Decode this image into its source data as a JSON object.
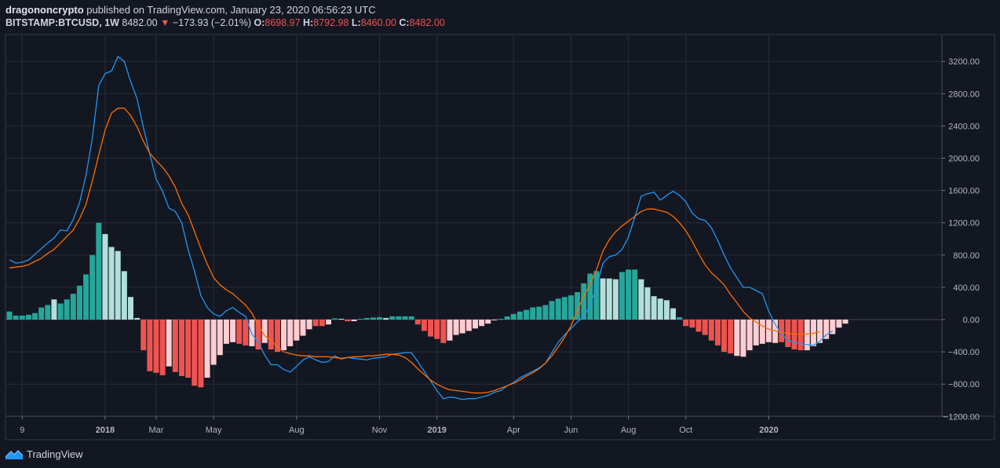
{
  "header": {
    "user": "dragononcrypto",
    "published": "published on TradingView.com, January 23, 2020 06:56:23 UTC",
    "symbol": "BITSTAMP:BTCUSD, 1W",
    "price": "8482.00",
    "change": "−173.93 (−2.01%)",
    "open_label": "O:",
    "open": "8698.97",
    "high_label": "H:",
    "high": "8792.98",
    "low_label": "L:",
    "low": "8460.00",
    "close_label": "C:",
    "close": "8482.00"
  },
  "footer": {
    "brand": "TradingView"
  },
  "colors": {
    "background": "#131722",
    "grid": "#2a2e39",
    "macd": "#2196f3",
    "signal": "#ff6d00",
    "hist_pos_strong": "#26a69a",
    "hist_pos_weak": "#b2dfdb",
    "hist_neg_strong": "#ef5350",
    "hist_neg_weak": "#ffcdd2"
  },
  "chart_data": {
    "type": "bar",
    "title": "",
    "ylim": [
      -1250,
      3400
    ],
    "y_ticks": [
      3200,
      2800,
      2400,
      2000,
      1600,
      1200,
      800,
      400,
      0,
      -400,
      -800,
      -1200
    ],
    "y_tick_labels": [
      "3200.00",
      "2800.00",
      "2400.00",
      "2000.00",
      "1600.00",
      "1200.00",
      "800.00",
      "400.00",
      "0.00",
      "−400.00",
      "−800.00",
      "−1200.00"
    ],
    "x_ticks": [
      {
        "label": "9",
        "week": 2,
        "bold": false
      },
      {
        "label": "2018",
        "week": 15,
        "bold": true
      },
      {
        "label": "Mar",
        "week": 23,
        "bold": false
      },
      {
        "label": "May",
        "week": 32,
        "bold": false
      },
      {
        "label": "Aug",
        "week": 45,
        "bold": false
      },
      {
        "label": "Nov",
        "week": 58,
        "bold": false
      },
      {
        "label": "2019",
        "week": 67,
        "bold": true
      },
      {
        "label": "Apr",
        "week": 79,
        "bold": false
      },
      {
        "label": "Jun",
        "week": 88,
        "bold": false
      },
      {
        "label": "Aug",
        "week": 97,
        "bold": false
      },
      {
        "label": "Oct",
        "week": 106,
        "bold": false
      },
      {
        "label": "2020",
        "week": 119,
        "bold": true
      }
    ],
    "x_range": [
      -0.5,
      129
    ],
    "histogram": [
      100,
      50,
      50,
      60,
      80,
      150,
      180,
      250,
      200,
      250,
      320,
      420,
      560,
      800,
      1200,
      1060,
      900,
      850,
      600,
      280,
      20,
      -380,
      -640,
      -660,
      -690,
      -580,
      -650,
      -700,
      -720,
      -820,
      -840,
      -720,
      -560,
      -440,
      -300,
      -280,
      -300,
      -320,
      -330,
      -370,
      -290,
      -370,
      -400,
      -380,
      -330,
      -260,
      -200,
      -120,
      -80,
      -80,
      -60,
      15,
      10,
      -20,
      -20,
      10,
      20,
      25,
      30,
      20,
      40,
      40,
      40,
      40,
      -60,
      -140,
      -210,
      -240,
      -290,
      -260,
      -190,
      -170,
      -140,
      -110,
      -80,
      -50,
      -10,
      10,
      40,
      70,
      100,
      120,
      150,
      160,
      180,
      230,
      260,
      280,
      300,
      340,
      450,
      570,
      600,
      510,
      510,
      500,
      590,
      620,
      620,
      500,
      400,
      290,
      260,
      240,
      140,
      30,
      -80,
      -100,
      -150,
      -190,
      -260,
      -320,
      -400,
      -420,
      -450,
      -460,
      -380,
      -320,
      -300,
      -280,
      -290,
      -280,
      -340,
      -370,
      -380,
      -380,
      -330,
      -290,
      -240,
      -180,
      -100,
      -50
    ],
    "hist_colors": [
      "s",
      "s",
      "s",
      "s",
      "s",
      "s",
      "s",
      "w",
      "s",
      "s",
      "s",
      "s",
      "s",
      "s",
      "s",
      "w",
      "w",
      "w",
      "w",
      "w",
      "w",
      "s",
      "s",
      "s",
      "s",
      "w",
      "s",
      "s",
      "s",
      "s",
      "s",
      "w",
      "w",
      "w",
      "w",
      "w",
      "s",
      "s",
      "w",
      "s",
      "w",
      "s",
      "s",
      "w",
      "w",
      "w",
      "w",
      "w",
      "s",
      "s",
      "w",
      "s",
      "w",
      "s",
      "w",
      "s",
      "s",
      "s",
      "s",
      "w",
      "s",
      "s",
      "s",
      "s",
      "s",
      "s",
      "s",
      "s",
      "s",
      "w",
      "w",
      "w",
      "w",
      "w",
      "w",
      "w",
      "w",
      "s",
      "s",
      "s",
      "s",
      "s",
      "s",
      "s",
      "s",
      "s",
      "s",
      "s",
      "s",
      "s",
      "s",
      "s",
      "s",
      "w",
      "w",
      "w",
      "s",
      "s",
      "s",
      "w",
      "w",
      "w",
      "w",
      "w",
      "w",
      "s",
      "s",
      "s",
      "s",
      "s",
      "s",
      "s",
      "s",
      "s",
      "w",
      "w",
      "w",
      "w",
      "w",
      "w",
      "w",
      "s",
      "s",
      "s",
      "s",
      "w",
      "w",
      "w",
      "w",
      "w"
    ],
    "series": [
      {
        "key": "macd",
        "values": [
          740,
          700,
          710,
          740,
          810,
          880,
          950,
          1010,
          1110,
          1100,
          1240,
          1450,
          1790,
          2250,
          2900,
          3050,
          3080,
          3260,
          3200,
          2950,
          2740,
          2380,
          2050,
          1740,
          1590,
          1380,
          1340,
          1200,
          870,
          600,
          300,
          150,
          70,
          40,
          110,
          150,
          90,
          40,
          -180,
          -280,
          -440,
          -560,
          -560,
          -620,
          -650,
          -580,
          -500,
          -460,
          -500,
          -530,
          -520,
          -450,
          -490,
          -470,
          -480,
          -490,
          -500,
          -480,
          -470,
          -460,
          -430,
          -420,
          -410,
          -410,
          -520,
          -640,
          -760,
          -880,
          -980,
          -960,
          -970,
          -990,
          -980,
          -980,
          -960,
          -940,
          -900,
          -880,
          -820,
          -780,
          -720,
          -680,
          -640,
          -600,
          -540,
          -410,
          -280,
          -190,
          -110,
          -30,
          40,
          180,
          400,
          700,
          780,
          800,
          870,
          1020,
          1270,
          1530,
          1560,
          1580,
          1480,
          1540,
          1590,
          1540,
          1460,
          1320,
          1250,
          1230,
          1140,
          980,
          800,
          640,
          520,
          400,
          400,
          360,
          320,
          100,
          -60,
          -180,
          -260,
          -280,
          -300,
          -310,
          -320,
          -270,
          -190,
          -140
        ],
        "color": "#2196f3"
      },
      {
        "key": "signal",
        "values": [
          640,
          650,
          660,
          680,
          720,
          760,
          820,
          870,
          950,
          1030,
          1110,
          1250,
          1430,
          1720,
          2040,
          2350,
          2560,
          2620,
          2620,
          2530,
          2390,
          2210,
          2060,
          1970,
          1890,
          1780,
          1640,
          1440,
          1300,
          1090,
          880,
          690,
          520,
          430,
          370,
          320,
          250,
          180,
          80,
          -70,
          -200,
          -260,
          -340,
          -400,
          -420,
          -440,
          -450,
          -450,
          -460,
          -460,
          -460,
          -470,
          -480,
          -470,
          -460,
          -460,
          -450,
          -450,
          -440,
          -430,
          -430,
          -440,
          -470,
          -530,
          -610,
          -680,
          -750,
          -800,
          -840,
          -870,
          -880,
          -890,
          -900,
          -910,
          -910,
          -900,
          -880,
          -850,
          -820,
          -790,
          -750,
          -700,
          -660,
          -610,
          -540,
          -450,
          -340,
          -220,
          -80,
          110,
          290,
          440,
          620,
          850,
          990,
          1090,
          1160,
          1220,
          1280,
          1340,
          1370,
          1370,
          1350,
          1330,
          1280,
          1200,
          1100,
          970,
          820,
          680,
          580,
          510,
          430,
          310,
          210,
          100,
          20,
          -30,
          -80,
          -120,
          -140,
          -160,
          -170,
          -180,
          -180,
          -180,
          -170,
          -150
        ],
        "color": "#ff6d00"
      }
    ]
  }
}
